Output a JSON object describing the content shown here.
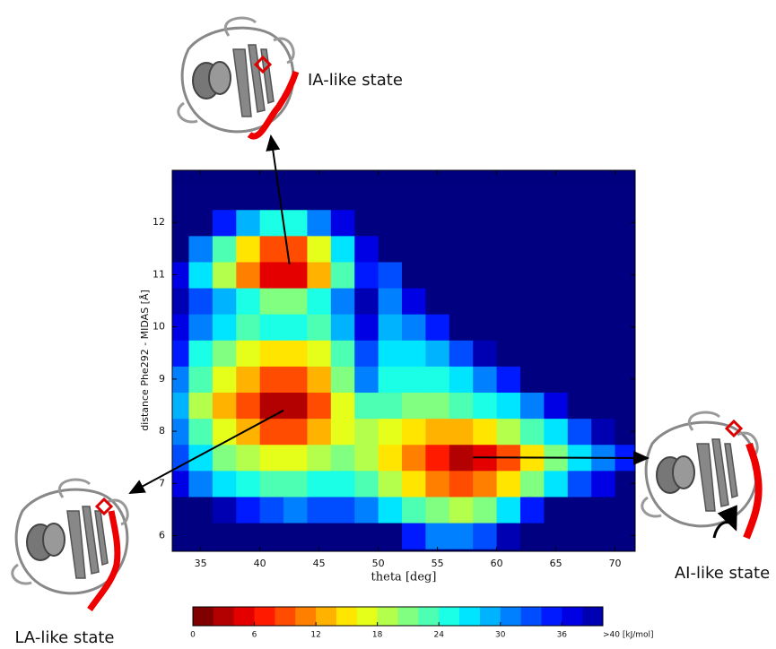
{
  "chart_data": {
    "type": "heatmap",
    "xlabel": "theta [deg]",
    "ylabel": "distance Phe292 - MIDAS [Å]",
    "xlim": [
      32.6,
      71.7
    ],
    "xticks": [
      35,
      40,
      45,
      50,
      55,
      60,
      65,
      70
    ],
    "ylim": [
      5.7,
      13.0
    ],
    "yticks": [
      6,
      7,
      8,
      9,
      10,
      11,
      12
    ],
    "colormap": "jet_r",
    "x": [
      33,
      35,
      37,
      39,
      41,
      43,
      45,
      47,
      49,
      51,
      53,
      55,
      57,
      59,
      61,
      63,
      65,
      67,
      69,
      71
    ],
    "y": [
      6.0,
      6.5,
      7.0,
      7.5,
      8.0,
      8.5,
      9.0,
      9.5,
      10.0,
      10.5,
      11.0,
      11.5,
      12.0,
      12.5
    ],
    "z": [
      [
        40,
        40,
        40,
        40,
        40,
        40,
        40,
        40,
        40,
        40,
        34,
        30,
        30,
        32,
        38,
        40,
        40,
        40,
        40,
        40
      ],
      [
        40,
        40,
        38,
        34,
        32,
        30,
        32,
        32,
        30,
        26,
        22,
        20,
        18,
        20,
        26,
        34,
        40,
        40,
        40,
        40
      ],
      [
        36,
        30,
        26,
        24,
        22,
        22,
        24,
        24,
        22,
        18,
        14,
        10,
        8,
        10,
        14,
        20,
        26,
        32,
        36,
        40
      ],
      [
        32,
        26,
        20,
        18,
        16,
        16,
        18,
        20,
        18,
        14,
        10,
        6,
        2,
        4,
        8,
        14,
        20,
        26,
        30,
        34
      ],
      [
        30,
        22,
        16,
        12,
        8,
        8,
        12,
        16,
        18,
        16,
        14,
        12,
        12,
        14,
        18,
        22,
        26,
        32,
        38,
        40
      ],
      [
        28,
        18,
        12,
        8,
        2,
        2,
        8,
        16,
        22,
        22,
        20,
        20,
        22,
        24,
        26,
        30,
        36,
        40,
        40,
        40
      ],
      [
        30,
        22,
        16,
        12,
        8,
        8,
        12,
        20,
        30,
        24,
        24,
        24,
        26,
        30,
        34,
        40,
        40,
        40,
        40,
        40
      ],
      [
        34,
        24,
        20,
        16,
        14,
        14,
        16,
        22,
        32,
        26,
        26,
        28,
        32,
        38,
        40,
        40,
        40,
        40,
        40,
        40
      ],
      [
        36,
        30,
        26,
        22,
        24,
        24,
        22,
        28,
        36,
        28,
        30,
        34,
        40,
        40,
        40,
        40,
        40,
        40,
        40,
        40
      ],
      [
        38,
        32,
        28,
        24,
        20,
        20,
        24,
        30,
        38,
        30,
        36,
        40,
        40,
        40,
        40,
        40,
        40,
        40,
        40,
        40
      ],
      [
        36,
        26,
        18,
        10,
        4,
        4,
        12,
        22,
        34,
        32,
        40,
        40,
        40,
        40,
        40,
        40,
        40,
        40,
        40,
        40
      ],
      [
        40,
        30,
        22,
        14,
        8,
        8,
        16,
        26,
        36,
        40,
        40,
        40,
        40,
        40,
        40,
        40,
        40,
        40,
        40,
        40
      ],
      [
        40,
        40,
        34,
        28,
        24,
        24,
        30,
        36,
        40,
        40,
        40,
        40,
        40,
        40,
        40,
        40,
        40,
        40,
        40,
        40
      ],
      [
        40,
        40,
        40,
        40,
        40,
        40,
        40,
        40,
        40,
        40,
        40,
        40,
        40,
        40,
        40,
        40,
        40,
        40,
        40,
        40
      ]
    ],
    "colorbar": {
      "levels": [
        0,
        2,
        4,
        6,
        8,
        10,
        12,
        14,
        16,
        18,
        20,
        22,
        24,
        26,
        28,
        30,
        32,
        34,
        36,
        38
      ],
      "lim": [
        0,
        40
      ],
      "ticks": [
        0,
        6,
        12,
        18,
        24,
        30,
        36,
        {
          "value": 40,
          "label": ">40 [kJ/mol]"
        }
      ]
    },
    "annotations": [
      {
        "text": "IA-like state",
        "x": 42.5,
        "y": 11.2
      },
      {
        "text": "LA-like state",
        "x": 42.0,
        "y": 8.4
      },
      {
        "text": "AI-like state",
        "x": 58.0,
        "y": 7.5
      }
    ]
  }
}
